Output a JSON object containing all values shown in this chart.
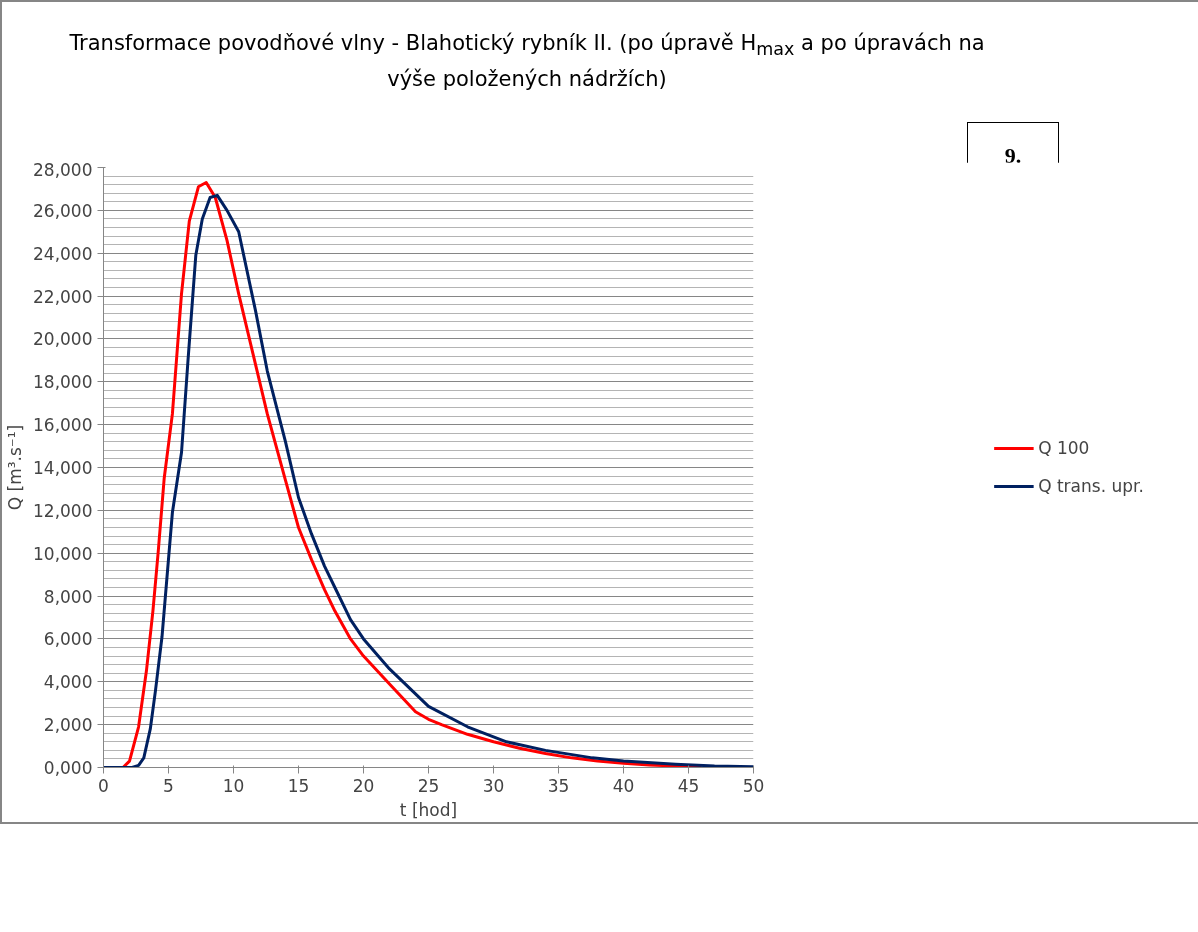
{
  "chart_data": {
    "type": "line",
    "title": "Transformace povodňové vlny - Blahotický rybník II.  (po úpravě H$_{max}$ a po úpravách na výše položených nádržích)",
    "xlabel": "t [hod]",
    "ylabel": "Q [m³.s⁻¹]",
    "annotations": [
      "9."
    ],
    "series": [
      {
        "name": "Q 100",
        "color": "#ff0000",
        "x": [
          0,
          1.5,
          2.0,
          2.7,
          3.3,
          3.8,
          4.2,
          4.67,
          5.3,
          6.0,
          6.6,
          7.3,
          7.9,
          8.6,
          9.5,
          10.4,
          11.5,
          12.6,
          14,
          15,
          16,
          17,
          17.8,
          19,
          20,
          22,
          24,
          25,
          26,
          28,
          30,
          31,
          32,
          34,
          36,
          38,
          40,
          42,
          44,
          46
        ],
        "values": [
          0,
          0,
          300,
          1900,
          4500,
          7300,
          10000,
          13500,
          16500,
          22100,
          25500,
          27100,
          27300,
          26600,
          24600,
          22100,
          19300,
          16500,
          13400,
          11200,
          9700,
          8300,
          7300,
          6000,
          5200,
          3900,
          2600,
          2250,
          2000,
          1550,
          1200,
          1050,
          900,
          650,
          450,
          300,
          200,
          120,
          70,
          40
        ]
      },
      {
        "name": "Q trans. upr.",
        "color": "#002060",
        "x": [
          0,
          2.2,
          2.7,
          3.1,
          3.6,
          4.0,
          4.5,
          5.3,
          6.0,
          6.5,
          7.1,
          7.6,
          8.2,
          8.75,
          9.5,
          10.4,
          11.7,
          12.6,
          14,
          15,
          16,
          17,
          17.8,
          19,
          20,
          22,
          25,
          28,
          31,
          34,
          37.6,
          40,
          44,
          47,
          50
        ],
        "values": [
          0,
          0,
          100,
          450,
          1800,
          3600,
          6100,
          11900,
          14700,
          19000,
          23900,
          25600,
          26600,
          26700,
          26000,
          25000,
          21300,
          18500,
          15200,
          12600,
          10900,
          9400,
          8400,
          6900,
          6000,
          4600,
          2850,
          1900,
          1200,
          800,
          450,
          300,
          150,
          70,
          40
        ]
      }
    ],
    "xlim": [
      0,
      50
    ],
    "xticks": [
      0,
      5,
      10,
      15,
      20,
      25,
      30,
      35,
      40,
      45,
      50
    ],
    "ylim": [
      0,
      28000
    ],
    "yticks": [
      {
        "value": 0,
        "label": "0,000"
      },
      {
        "value": 2000,
        "label": "2,000"
      },
      {
        "value": 4000,
        "label": "4,000"
      },
      {
        "value": 6000,
        "label": "6,000"
      },
      {
        "value": 8000,
        "label": "8,000"
      },
      {
        "value": 10000,
        "label": "10,000"
      },
      {
        "value": 12000,
        "label": "12,000"
      },
      {
        "value": 14000,
        "label": "14,000"
      },
      {
        "value": 16000,
        "label": "16,000"
      },
      {
        "value": 18000,
        "label": "18,000"
      },
      {
        "value": 20000,
        "label": "20,000"
      },
      {
        "value": 22000,
        "label": "22,000"
      },
      {
        "value": 24000,
        "label": "24,000"
      },
      {
        "value": 26000,
        "label": "26,000"
      },
      {
        "value": 28000,
        "label": "28,000"
      }
    ],
    "grid": "y",
    "legend": "right",
    "marker": "none",
    "line_style": "solid"
  }
}
